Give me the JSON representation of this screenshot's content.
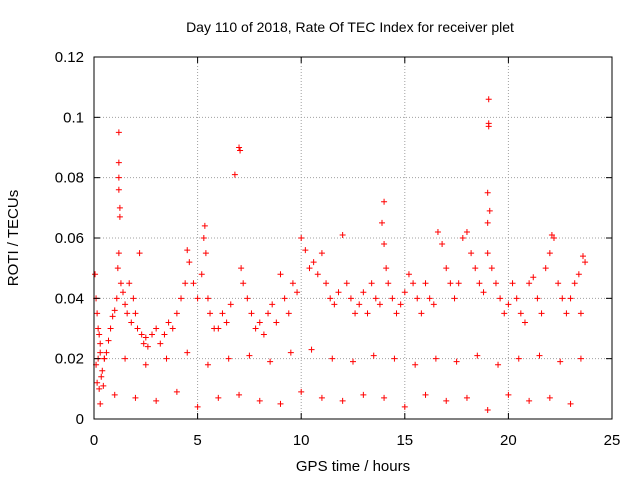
{
  "chart_data": {
    "type": "scatter",
    "title": "Day 110 of 2018, Rate Of TEC Index for receiver plet",
    "xlabel": "GPS time / hours",
    "ylabel": "ROTI / TECUs",
    "xlim": [
      0,
      25
    ],
    "ylim": [
      0,
      0.12
    ],
    "x_ticks": [
      0,
      5,
      10,
      15,
      20,
      25
    ],
    "x_tick_labels": [
      "0",
      "5",
      "10",
      "15",
      "20",
      "25"
    ],
    "y_ticks": [
      0,
      0.02,
      0.04,
      0.06,
      0.08,
      0.1,
      0.12
    ],
    "y_tick_labels": [
      "0",
      "0.02",
      "0.04",
      "0.06",
      "0.08",
      "0.1",
      "0.12"
    ],
    "grid": true,
    "marker": "+",
    "color": "#ff0000",
    "series": [
      {
        "name": "ROTI",
        "x": [
          0.05,
          0.1,
          0.15,
          0.2,
          0.25,
          0.3,
          0.1,
          0.2,
          0.3,
          0.4,
          0.15,
          0.25,
          0.35,
          0.45,
          0.5,
          0.6,
          0.7,
          0.8,
          0.9,
          1.0,
          1.1,
          1.15,
          1.2,
          1.2,
          1.2,
          1.2,
          1.25,
          1.25,
          1.2,
          1.3,
          1.4,
          1.5,
          1.6,
          1.7,
          1.8,
          1.9,
          2.0,
          2.1,
          2.2,
          2.3,
          2.4,
          2.5,
          2.6,
          2.8,
          3.0,
          3.2,
          3.4,
          3.6,
          3.8,
          4.0,
          4.2,
          4.4,
          4.5,
          4.6,
          4.8,
          5.0,
          5.2,
          5.3,
          5.35,
          5.4,
          5.5,
          5.6,
          5.8,
          6.0,
          6.2,
          6.4,
          6.6,
          6.8,
          7.0,
          7.05,
          7.1,
          7.2,
          7.4,
          7.6,
          7.8,
          8.0,
          8.2,
          8.4,
          8.6,
          8.8,
          9.0,
          9.2,
          9.4,
          9.6,
          9.8,
          10.0,
          10.2,
          10.4,
          10.6,
          10.8,
          11.0,
          11.2,
          11.4,
          11.6,
          11.8,
          12.0,
          12.2,
          12.4,
          12.6,
          12.8,
          13.0,
          13.2,
          13.4,
          13.6,
          13.8,
          13.9,
          14.0,
          14.0,
          14.1,
          14.2,
          14.4,
          14.6,
          14.8,
          15.0,
          15.2,
          15.4,
          15.6,
          15.8,
          16.0,
          16.2,
          16.4,
          16.6,
          16.8,
          17.0,
          17.2,
          17.4,
          17.6,
          17.8,
          18.0,
          18.2,
          18.4,
          18.6,
          18.8,
          19.0,
          19.0,
          19.05,
          19.05,
          19.05,
          19.0,
          19.1,
          19.2,
          19.4,
          19.6,
          19.8,
          20.0,
          20.2,
          20.4,
          20.6,
          20.8,
          21.0,
          21.2,
          21.4,
          21.6,
          21.8,
          22.0,
          22.1,
          22.2,
          22.4,
          22.6,
          22.8,
          23.0,
          23.2,
          23.4,
          23.6,
          23.7,
          23.5,
          0.3,
          1.0,
          2.0,
          3.0,
          4.0,
          5.0,
          6.0,
          7.0,
          8.0,
          9.0,
          10.0,
          11.0,
          12.0,
          13.0,
          14.0,
          15.0,
          16.0,
          17.0,
          18.0,
          19.0,
          20.0,
          21.0,
          22.0,
          23.0,
          0.5,
          1.5,
          2.5,
          3.5,
          4.5,
          5.5,
          6.5,
          7.5,
          8.5,
          9.5,
          10.5,
          11.5,
          12.5,
          13.5,
          14.5,
          15.5,
          16.5,
          17.5,
          18.5,
          19.5,
          20.5,
          21.5,
          22.5,
          23.5
        ],
        "y": [
          0.048,
          0.04,
          0.035,
          0.03,
          0.028,
          0.025,
          0.018,
          0.02,
          0.022,
          0.016,
          0.012,
          0.01,
          0.014,
          0.011,
          0.02,
          0.022,
          0.026,
          0.03,
          0.034,
          0.036,
          0.04,
          0.05,
          0.095,
          0.085,
          0.08,
          0.076,
          0.07,
          0.067,
          0.055,
          0.045,
          0.042,
          0.038,
          0.035,
          0.045,
          0.032,
          0.04,
          0.035,
          0.03,
          0.055,
          0.028,
          0.025,
          0.027,
          0.024,
          0.028,
          0.03,
          0.025,
          0.028,
          0.032,
          0.03,
          0.035,
          0.04,
          0.045,
          0.056,
          0.052,
          0.045,
          0.04,
          0.048,
          0.06,
          0.064,
          0.055,
          0.04,
          0.035,
          0.03,
          0.03,
          0.035,
          0.032,
          0.038,
          0.081,
          0.09,
          0.089,
          0.05,
          0.045,
          0.04,
          0.035,
          0.03,
          0.032,
          0.028,
          0.035,
          0.038,
          0.032,
          0.048,
          0.04,
          0.035,
          0.045,
          0.042,
          0.06,
          0.056,
          0.05,
          0.052,
          0.048,
          0.055,
          0.045,
          0.04,
          0.038,
          0.042,
          0.061,
          0.045,
          0.04,
          0.035,
          0.038,
          0.042,
          0.035,
          0.045,
          0.04,
          0.038,
          0.065,
          0.072,
          0.058,
          0.05,
          0.045,
          0.04,
          0.035,
          0.038,
          0.042,
          0.048,
          0.045,
          0.04,
          0.035,
          0.045,
          0.04,
          0.038,
          0.062,
          0.058,
          0.05,
          0.045,
          0.04,
          0.045,
          0.06,
          0.062,
          0.055,
          0.05,
          0.045,
          0.042,
          0.055,
          0.065,
          0.106,
          0.098,
          0.097,
          0.075,
          0.069,
          0.05,
          0.045,
          0.04,
          0.035,
          0.038,
          0.045,
          0.04,
          0.035,
          0.032,
          0.045,
          0.047,
          0.04,
          0.035,
          0.05,
          0.055,
          0.061,
          0.06,
          0.045,
          0.04,
          0.035,
          0.04,
          0.045,
          0.048,
          0.054,
          0.052,
          0.035,
          0.005,
          0.008,
          0.007,
          0.006,
          0.009,
          0.004,
          0.007,
          0.008,
          0.006,
          0.005,
          0.009,
          0.007,
          0.006,
          0.008,
          0.007,
          0.004,
          0.008,
          0.006,
          0.007,
          0.003,
          0.008,
          0.006,
          0.007,
          0.005,
          0.02,
          0.02,
          0.018,
          0.02,
          0.022,
          0.018,
          0.02,
          0.021,
          0.019,
          0.022,
          0.023,
          0.02,
          0.019,
          0.021,
          0.02,
          0.018,
          0.02,
          0.019,
          0.021,
          0.018,
          0.02,
          0.021,
          0.019,
          0.02
        ]
      }
    ]
  }
}
